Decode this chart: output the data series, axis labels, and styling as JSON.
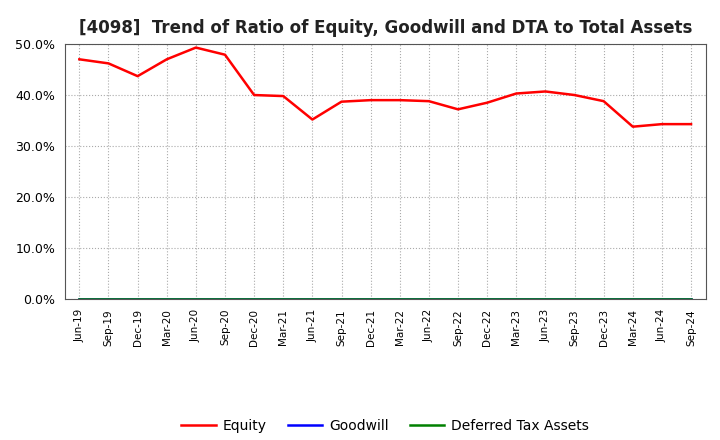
{
  "title": "[4098]  Trend of Ratio of Equity, Goodwill and DTA to Total Assets",
  "x_labels": [
    "Jun-19",
    "Sep-19",
    "Dec-19",
    "Mar-20",
    "Jun-20",
    "Sep-20",
    "Dec-20",
    "Mar-21",
    "Jun-21",
    "Sep-21",
    "Dec-21",
    "Mar-22",
    "Jun-22",
    "Sep-22",
    "Dec-22",
    "Mar-23",
    "Jun-23",
    "Sep-23",
    "Dec-23",
    "Mar-24",
    "Jun-24",
    "Sep-24"
  ],
  "equity": [
    0.47,
    0.462,
    0.437,
    0.47,
    0.493,
    0.479,
    0.4,
    0.398,
    0.352,
    0.387,
    0.39,
    0.39,
    0.388,
    0.372,
    0.385,
    0.403,
    0.407,
    0.4,
    0.388,
    0.338,
    0.343,
    0.343
  ],
  "goodwill": [
    0,
    0,
    0,
    0,
    0,
    0,
    0,
    0,
    0,
    0,
    0,
    0,
    0,
    0,
    0,
    0,
    0,
    0,
    0,
    0,
    0,
    0
  ],
  "dta": [
    0,
    0,
    0,
    0,
    0,
    0,
    0,
    0,
    0,
    0,
    0,
    0,
    0,
    0,
    0,
    0,
    0,
    0,
    0,
    0,
    0,
    0
  ],
  "equity_color": "#FF0000",
  "goodwill_color": "#0000FF",
  "dta_color": "#008000",
  "ylim": [
    0.0,
    0.5
  ],
  "yticks": [
    0.0,
    0.1,
    0.2,
    0.3,
    0.4,
    0.5
  ],
  "grid_color": "#AAAAAA",
  "bg_color": "#FFFFFF",
  "plot_bg_color": "#FFFFFF",
  "title_fontsize": 12,
  "legend_labels": [
    "Equity",
    "Goodwill",
    "Deferred Tax Assets"
  ],
  "line_width": 1.8
}
